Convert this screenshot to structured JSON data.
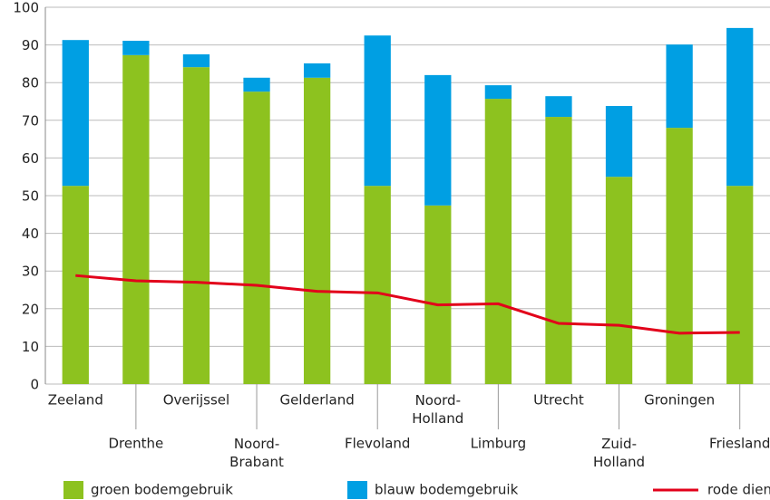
{
  "chart_data": {
    "type": "stacked-bar-line",
    "categories": [
      "Zeeland",
      "Drenthe",
      "Overijssel",
      "Noord-Brabant",
      "Gelderland",
      "Flevoland",
      "Noord-Holland",
      "Limburg",
      "Utrecht",
      "Zuid-Holland",
      "Groningen",
      "Friesland"
    ],
    "series": [
      {
        "name": "groen bodemgebruik",
        "color": "#8dc21f",
        "kind": "bar",
        "values": [
          52.6,
          87.3,
          84.1,
          77.6,
          81.3,
          52.6,
          47.4,
          75.7,
          70.9,
          55.0,
          68.0,
          52.6
        ]
      },
      {
        "name": "blauw bodemgebruik",
        "color": "#009fe3",
        "kind": "bar",
        "values": [
          38.7,
          3.8,
          3.4,
          3.7,
          3.8,
          39.9,
          34.6,
          3.6,
          5.5,
          18.8,
          22.1,
          41.9
        ]
      },
      {
        "name": "rode diensten",
        "color": "#e2001a",
        "kind": "line",
        "values": [
          28.8,
          27.4,
          27.0,
          26.2,
          24.6,
          24.2,
          21.0,
          21.3,
          16.1,
          15.6,
          13.5,
          13.7
        ]
      }
    ],
    "ylim": [
      0,
      100
    ],
    "yticks": [
      0,
      10,
      20,
      30,
      40,
      50,
      60,
      70,
      80,
      90,
      100
    ],
    "grid": true,
    "legend": "bottom"
  }
}
